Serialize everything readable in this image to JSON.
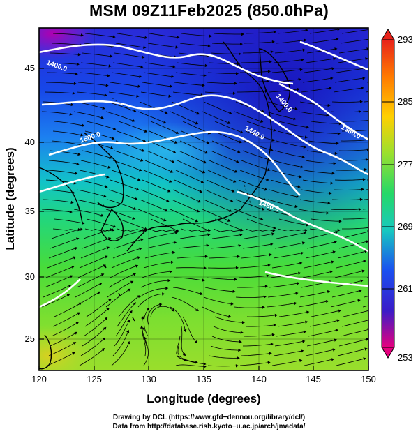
{
  "header": {
    "title": "MSM 09Z11Feb2025 (850.0hPa)"
  },
  "map": {
    "x_axis_label": "Longitude (degrees)",
    "y_axis_label": "Latitude  (degrees)",
    "x_ticks": [
      "120",
      "125",
      "130",
      "135",
      "140",
      "145",
      "150"
    ],
    "y_ticks": [
      "25",
      "30",
      "35",
      "40",
      "45"
    ],
    "lon_range": [
      120,
      150
    ],
    "lat_range": [
      22.5,
      48
    ],
    "contour_labels": [
      "1400.0",
      "1400.0",
      "1440.0",
      "1380.0",
      "1480.0",
      "1500.0"
    ]
  },
  "colorbar": {
    "labels": [
      "293",
      "285",
      "277",
      "269",
      "261",
      "253"
    ],
    "range": [
      253,
      293
    ],
    "colors": [
      "#e6007e",
      "#3a1cc8",
      "#1a4ff0",
      "#18c8c0",
      "#24d868",
      "#9ae02e",
      "#ffd000",
      "#ff7a00",
      "#e8221a"
    ]
  },
  "footer": {
    "line1": "Drawing by DCL (https://www.gfd−dennou.org/library/dcl/)",
    "line2": "Data from http://database.rish.kyoto−u.ac.jp/arch/jmadata/"
  }
}
